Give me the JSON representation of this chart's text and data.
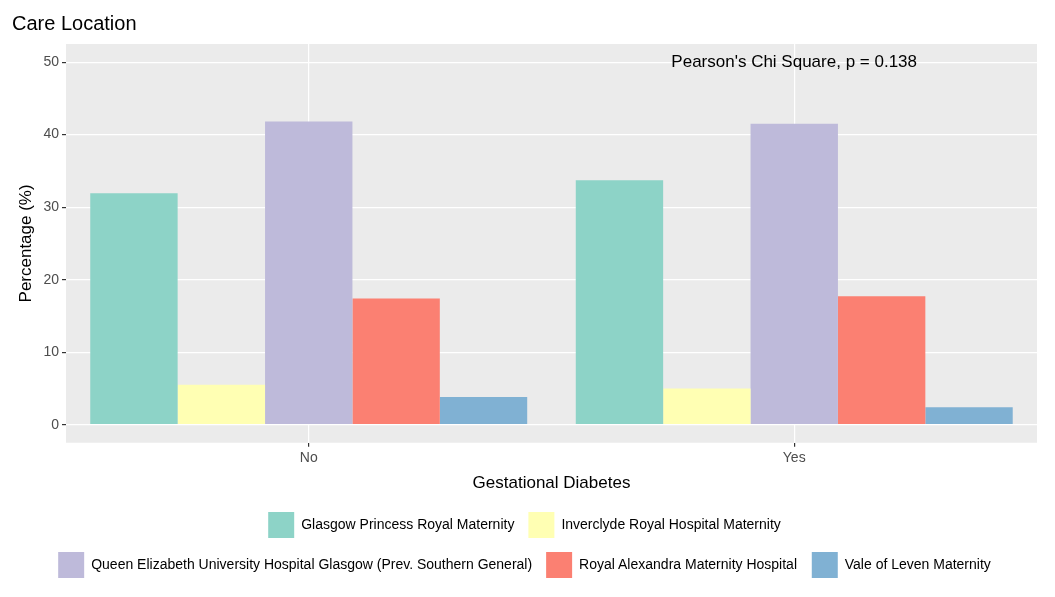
{
  "chart_data": {
    "type": "bar",
    "title": "Care Location",
    "xlabel": "Gestational Diabetes",
    "ylabel": "Percentage (%)",
    "categories": [
      "No",
      "Yes"
    ],
    "series": [
      {
        "name": "Glasgow Princess Royal Maternity",
        "color": "#8dd3c7",
        "values": [
          31.9,
          33.7
        ]
      },
      {
        "name": "Inverclyde Royal Hospital Maternity",
        "color": "#ffffb3",
        "values": [
          5.5,
          5.0
        ]
      },
      {
        "name": "Queen Elizabeth University Hospital Glasgow (Prev. Southern General)",
        "color": "#bebada",
        "values": [
          41.8,
          41.5
        ]
      },
      {
        "name": "Royal Alexandra Maternity Hospital",
        "color": "#fb8072",
        "values": [
          17.4,
          17.7
        ]
      },
      {
        "name": "Vale of Leven Maternity",
        "color": "#80b1d3",
        "values": [
          3.8,
          2.4
        ]
      }
    ],
    "ylim": [
      -2.5,
      52.5
    ],
    "yticks": [
      0,
      10,
      20,
      30,
      40,
      50
    ],
    "grid": true,
    "legend": "bottom",
    "annotations": [
      "Pearson's Chi Square, p = 0.138"
    ]
  }
}
